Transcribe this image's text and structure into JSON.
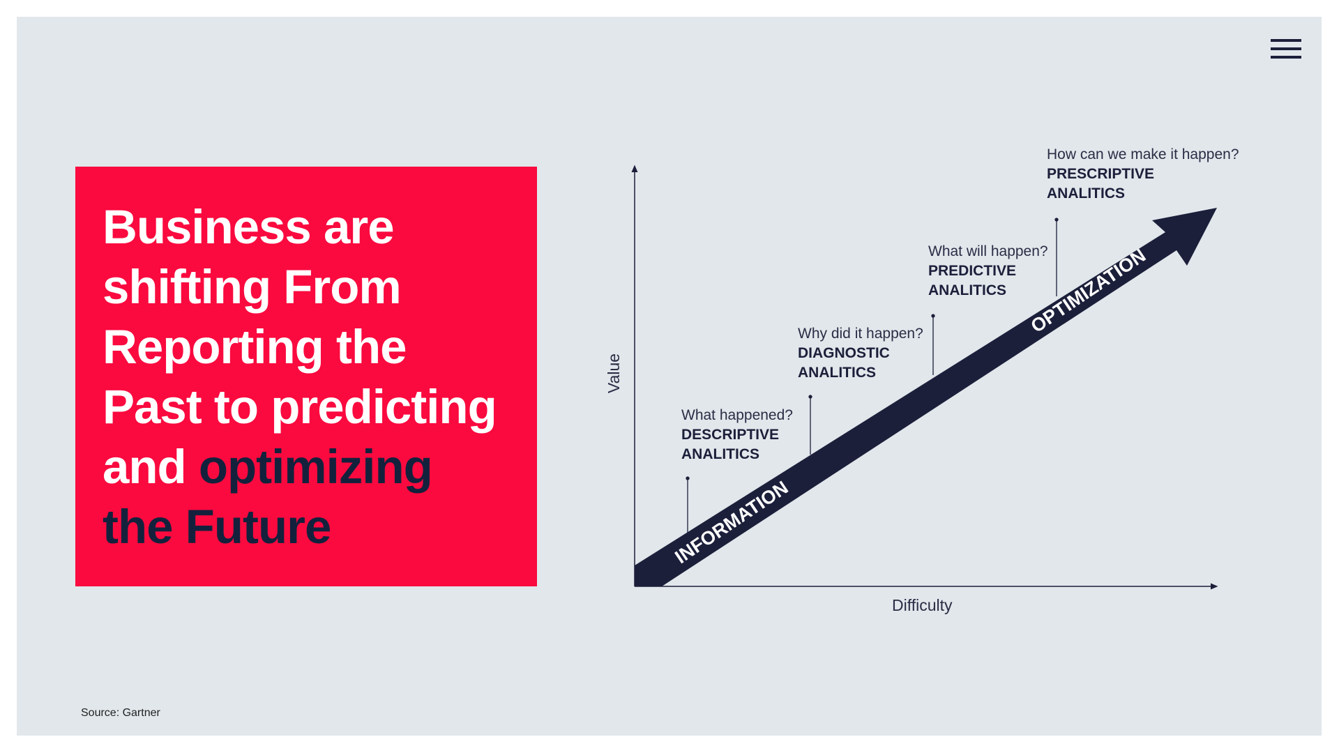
{
  "title": {
    "lines": [
      [
        {
          "text": "Business are",
          "dark": false
        }
      ],
      [
        {
          "text": "shifting From",
          "dark": false
        }
      ],
      [
        {
          "text": "Reporting the",
          "dark": false
        }
      ],
      [
        {
          "text": "Past to predicting",
          "dark": false
        }
      ],
      [
        {
          "text": "and ",
          "dark": false
        },
        {
          "text": "optimizing",
          "dark": true
        }
      ],
      [
        {
          "text": "the Future",
          "dark": true
        }
      ]
    ]
  },
  "diagram": {
    "y_axis_label": "Value",
    "x_axis_label": "Difficulty",
    "arrow_labels": {
      "start": "INFORMATION",
      "end": "OPTIMIZATION"
    },
    "stages": [
      {
        "question": "What happened?",
        "name1": "DESCRIPTIVE",
        "name2": "ANALITICS"
      },
      {
        "question": "Why did it happen?",
        "name1": "DIAGNOSTIC",
        "name2": "ANALITICS"
      },
      {
        "question": "What will happen?",
        "name1": "PREDICTIVE",
        "name2": "ANALITICS"
      },
      {
        "question": "How can we make it happen?",
        "name1": "PRESCRIPTIVE",
        "name2": "ANALITICS"
      }
    ]
  },
  "source": "Source: Gartner",
  "menu_icon": "hamburger-menu-icon",
  "colors": {
    "accent_red": "#fa0a3f",
    "navy": "#1c1f3a",
    "background": "#e1e7eb"
  }
}
